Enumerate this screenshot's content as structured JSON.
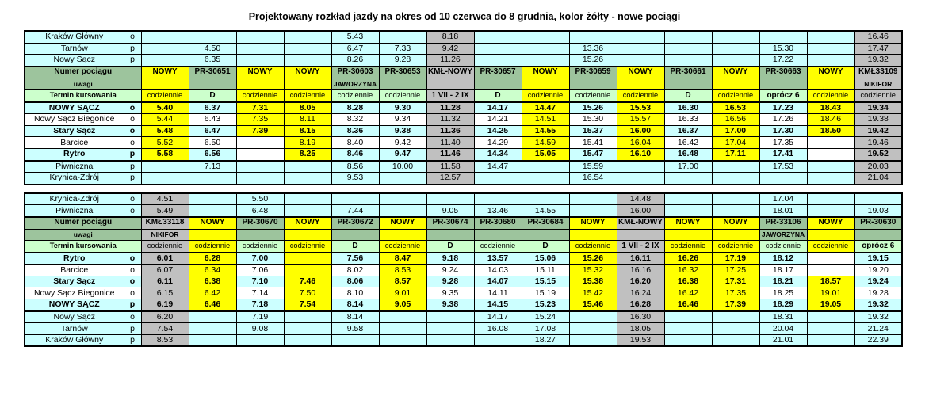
{
  "title": "Projektowany rozkład jazdy na okres od 10 czerwca do 8 grudnia, kolor żółty - nowe pociągi",
  "labels": {
    "numer": "Numer pociągu",
    "uwagi": "uwagi",
    "termin": "Termin kursowania"
  },
  "colors": {
    "new_train_yellow": "#ffff00",
    "kml_grey": "#c0c0c0",
    "header_green": "#9dc49d",
    "termin_light_green": "#ccffcc",
    "row_cyan": "#ccffff"
  },
  "legend_note": "kolor żółty - nowe pociągi",
  "tables": [
    {
      "top_rows": [
        {
          "station": "Kraków Główny",
          "op": "o",
          "cells": [
            "",
            "",
            "",
            "",
            "5.43",
            "",
            "8.18|k",
            "",
            "",
            "",
            "",
            "",
            "",
            "",
            "",
            "16.46|k"
          ]
        },
        {
          "station": "Tarnów",
          "op": "p",
          "cells": [
            "",
            "4.50",
            "",
            "",
            "6.47",
            "7.33",
            "9.42|k",
            "",
            "",
            "13.36",
            "",
            "",
            "",
            "15.30",
            "",
            "17.47|k"
          ]
        },
        {
          "station": "Nowy Sącz",
          "op": "p",
          "cells": [
            "",
            "6.35",
            "",
            "",
            "8.26",
            "9.28",
            "11.26|k",
            "",
            "",
            "15.26",
            "",
            "",
            "",
            "17.22",
            "",
            "19.32|k"
          ]
        }
      ],
      "header": {
        "numbers": [
          "NOWY|y",
          "PR-30651|g",
          "NOWY|y",
          "NOWY|y",
          "PR-30603|g",
          "PR-30653|g",
          "KMŁ-NOWY|k",
          "PR-30657|g",
          "NOWY|y",
          "PR-30659|g",
          "NOWY|y",
          "PR-30661|g",
          "NOWY|y",
          "PR-30663|g",
          "NOWY|y",
          "KMŁ33109|k"
        ],
        "uwagi": [
          "|y",
          "|g",
          "|y",
          "|y",
          "JAWORZYNA|g",
          "|g",
          "|k",
          "|g",
          "|y",
          "|g",
          "|y",
          "|g",
          "|y",
          "|g",
          "|y",
          "NIKIFOR|k"
        ],
        "termin": [
          "codziennie|y",
          "D|lg",
          "codziennie|y",
          "codziennie|y",
          "codziennie|lg",
          "codziennie|lg",
          "1 VII - 2 IX|k",
          "D|lg",
          "codziennie|y",
          "codziennie|lg",
          "codziennie|y",
          "D|lg",
          "codziennie|y",
          "oprócz 6|lg",
          "codziennie|y",
          "codziennie|k"
        ]
      },
      "body_rows": [
        {
          "station": "NOWY SĄCZ",
          "op": "o",
          "zebra": "c",
          "bold": true,
          "cells": [
            "5.40|y",
            "6.37",
            "7.31|y",
            "8.05|y",
            "8.28",
            "9.30",
            "11.28|k",
            "14.17",
            "14.47|y",
            "15.26",
            "15.53|y",
            "16.30",
            "16.53|y",
            "17.23",
            "18.43|y",
            "19.34|k"
          ]
        },
        {
          "station": "Nowy Sącz Biegonice",
          "op": "o",
          "zebra": "w",
          "cells": [
            "5.44|y",
            "6.43",
            "7.35|y",
            "8.11|y",
            "8.32",
            "9.34",
            "11.32|k",
            "14.21",
            "14.51|y",
            "15.30",
            "15.57|y",
            "16.33",
            "16.56|y",
            "17.26",
            "18.46|y",
            "19.38|k"
          ]
        },
        {
          "station": "Stary Sącz",
          "op": "o",
          "zebra": "c",
          "bold": true,
          "cells": [
            "5.48|y",
            "6.47",
            "7.39|y",
            "8.15|y",
            "8.36",
            "9.38",
            "11.36|k",
            "14.25",
            "14.55|y",
            "15.37",
            "16.00|y",
            "16.37",
            "17.00|y",
            "17.30",
            "18.50|y",
            "19.42|k"
          ]
        },
        {
          "station": "Barcice",
          "op": "o",
          "zebra": "w",
          "cells": [
            "5.52|y",
            "6.50",
            "|w",
            "8.19|y",
            "8.40",
            "9.42",
            "11.40|k",
            "14.29",
            "14.59|y",
            "15.41",
            "16.04|y",
            "16.42",
            "17.04|y",
            "17.35",
            "|w",
            "19.46|k"
          ]
        },
        {
          "station": "Rytro",
          "op": "p",
          "zebra": "c",
          "bold": true,
          "cells": [
            "5.58|y",
            "6.56",
            "|w",
            "8.25|y",
            "8.46",
            "9.47",
            "11.46|k",
            "14.34",
            "15.05|y",
            "15.47",
            "16.10|y",
            "16.48",
            "17.11|y",
            "17.41",
            "|w",
            "19.52|k"
          ]
        },
        {
          "station": "Piwniczna",
          "op": "p",
          "zebra": "c",
          "sep": true,
          "cells": [
            "",
            "7.13",
            "",
            "",
            "8.56",
            "10.00",
            "11.58|k",
            "14.47",
            "",
            "15.59",
            "",
            "17.00",
            "",
            "17.53",
            "",
            "20.03|k"
          ]
        },
        {
          "station": "Krynica-Zdrój",
          "op": "p",
          "zebra": "c",
          "cells": [
            "",
            "",
            "",
            "",
            "9.53",
            "",
            "12.57|k",
            "",
            "",
            "16.54",
            "",
            "",
            "",
            "",
            "",
            "21.04|k"
          ]
        }
      ]
    },
    {
      "top_rows": [
        {
          "station": "Krynica-Zdrój",
          "op": "o",
          "cells": [
            "4.51|k",
            "",
            "5.50",
            "",
            "",
            "",
            "",
            "",
            "",
            "",
            "14.48|k",
            "",
            "",
            "17.04",
            "",
            ""
          ]
        },
        {
          "station": "Piwniczna",
          "op": "o",
          "cells": [
            "5.49|k",
            "",
            "6.48",
            "",
            "7.44",
            "",
            "9.05",
            "13.46",
            "14.55",
            "",
            "16.00|k",
            "",
            "",
            "18.01",
            "",
            "19.03"
          ]
        }
      ],
      "header": {
        "numbers": [
          "KMŁ33118|k",
          "NOWY|y",
          "PR-30670|g",
          "NOWY|y",
          "PR-30672|g",
          "NOWY|y",
          "PR-30674|g",
          "PR-30680|g",
          "PR-30684|g",
          "NOWY|y",
          "KMŁ-NOWY|k",
          "NOWY|y",
          "NOWY|y",
          "PR-33106|g",
          "NOWY|y",
          "PR-30630|g"
        ],
        "uwagi": [
          "NIKIFOR|k",
          "|y",
          "|g",
          "|y",
          "|g",
          "|y",
          "|g",
          "|g",
          "|g",
          "|y",
          "|k",
          "|y",
          "|y",
          "JAWORZYNA|g",
          "|y",
          "|g"
        ],
        "termin": [
          "codziennie|k",
          "codziennie|y",
          "codziennie|lg",
          "codziennie|y",
          "D|lg",
          "codziennie|y",
          "D|lg",
          "codziennie|lg",
          "D|lg",
          "codziennie|y",
          "1 VII - 2 IX|k",
          "codziennie|y",
          "codziennie|y",
          "codziennie|lg",
          "codziennie|y",
          "oprócz 6|lg"
        ]
      },
      "body_rows": [
        {
          "station": "Rytro",
          "op": "o",
          "zebra": "c",
          "bold": true,
          "cells": [
            "6.01|k",
            "6.28|y",
            "7.00",
            "|y",
            "7.56",
            "8.47|y",
            "9.18",
            "13.57",
            "15.06",
            "15.26|y",
            "16.11|k",
            "16.26|y",
            "17.19|y",
            "18.12",
            "|w",
            "19.15"
          ]
        },
        {
          "station": "Barcice",
          "op": "o",
          "zebra": "w",
          "cells": [
            "6.07|k",
            "6.34|y",
            "7.06",
            "|y",
            "8.02",
            "8.53|y",
            "9.24",
            "14.03",
            "15.11",
            "15.32|y",
            "16.16|k",
            "16.32|y",
            "17.25|y",
            "18.17",
            "|w",
            "19.20"
          ]
        },
        {
          "station": "Stary Sącz",
          "op": "o",
          "zebra": "c",
          "bold": true,
          "cells": [
            "6.11|k",
            "6.38|y",
            "7.10",
            "7.46|y",
            "8.06",
            "8.57|y",
            "9.28",
            "14.07",
            "15.15",
            "15.38|y",
            "16.20|k",
            "16.38|y",
            "17.31|y",
            "18.21",
            "18.57|y",
            "19.24"
          ]
        },
        {
          "station": "Nowy Sącz Biegonice",
          "op": "o",
          "zebra": "w",
          "cells": [
            "6.15|k",
            "6.42|y",
            "7.14",
            "7.50|y",
            "8.10",
            "9.01|y",
            "9.35",
            "14.11",
            "15.19",
            "15.42|y",
            "16.24|k",
            "16.42|y",
            "17.35|y",
            "18.25",
            "19.01|y",
            "19.28"
          ]
        },
        {
          "station": "NOWY SĄCZ",
          "op": "p",
          "zebra": "c",
          "bold": true,
          "cells": [
            "6.19|k",
            "6.46|y",
            "7.18",
            "7.54|y",
            "8.14",
            "9.05|y",
            "9.38",
            "14.15",
            "15.23",
            "15.46|y",
            "16.28|k",
            "16.46|y",
            "17.39|y",
            "18.29",
            "19.05|y",
            "19.32"
          ]
        },
        {
          "station": "Nowy Sącz",
          "op": "o",
          "zebra": "c",
          "sep": true,
          "cells": [
            "6.20|k",
            "",
            "7.19",
            "",
            "8.14",
            "",
            "",
            "14.17",
            "15.24",
            "",
            "16.30|k",
            "",
            "",
            "18.31",
            "",
            "19.32"
          ]
        },
        {
          "station": "Tarnów",
          "op": "p",
          "zebra": "c",
          "cells": [
            "7.54|k",
            "",
            "9.08",
            "",
            "9.58",
            "",
            "",
            "16.08",
            "17.08",
            "",
            "18.05|k",
            "",
            "",
            "20.04",
            "",
            "21.24"
          ]
        },
        {
          "station": "Kraków Główny",
          "op": "p",
          "zebra": "c",
          "cells": [
            "8.53|k",
            "",
            "",
            "",
            "",
            "",
            "",
            "",
            "18.27",
            "",
            "19.53|k",
            "",
            "",
            "21.01",
            "",
            "22.39"
          ]
        }
      ]
    }
  ]
}
